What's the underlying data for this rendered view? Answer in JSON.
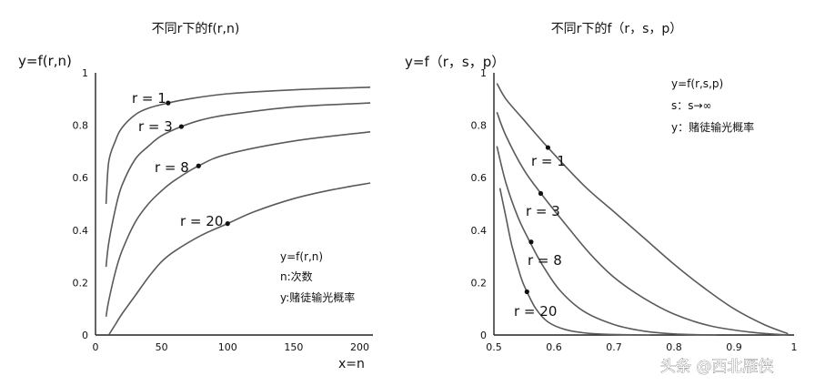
{
  "chart_data": [
    {
      "type": "line",
      "title": "不同r下的f(r,n)",
      "ylabel": "y=f(r,n)",
      "xlabel": "x=n",
      "xlim": [
        0,
        210
      ],
      "ylim": [
        0,
        1
      ],
      "x_ticks": [
        "0",
        "50",
        "100",
        "150",
        "200"
      ],
      "y_ticks": [
        "0",
        "0.2",
        "0.4",
        "0.6",
        "0.8",
        "1"
      ],
      "series": [
        {
          "name": "r=1",
          "x": [
            8,
            10,
            15,
            20,
            30,
            40,
            55,
            70,
            100,
            150,
            208
          ],
          "y": [
            0.5,
            0.66,
            0.74,
            0.79,
            0.84,
            0.865,
            0.885,
            0.9,
            0.92,
            0.935,
            0.945
          ]
        },
        {
          "name": "r=3",
          "x": [
            8,
            10,
            15,
            20,
            30,
            40,
            50,
            65,
            80,
            100,
            150,
            208
          ],
          "y": [
            0.26,
            0.35,
            0.48,
            0.57,
            0.67,
            0.72,
            0.76,
            0.795,
            0.82,
            0.84,
            0.87,
            0.885
          ]
        },
        {
          "name": "r=8",
          "x": [
            8,
            10,
            15,
            20,
            30,
            40,
            50,
            60,
            78,
            100,
            150,
            208
          ],
          "y": [
            0.07,
            0.13,
            0.24,
            0.32,
            0.43,
            0.5,
            0.55,
            0.59,
            0.645,
            0.69,
            0.74,
            0.775
          ]
        },
        {
          "name": "r=20",
          "x": [
            10,
            15,
            20,
            30,
            40,
            50,
            60,
            80,
            100,
            120,
            150,
            180,
            208
          ],
          "y": [
            0.0,
            0.04,
            0.08,
            0.15,
            0.22,
            0.28,
            0.32,
            0.38,
            0.425,
            0.47,
            0.52,
            0.555,
            0.58
          ]
        }
      ],
      "markers": [
        {
          "x": 55,
          "y": 0.885
        },
        {
          "x": 65,
          "y": 0.795
        },
        {
          "x": 78,
          "y": 0.645
        },
        {
          "x": 100,
          "y": 0.425
        }
      ],
      "curve_labels": [
        "r = 1",
        "r = 3",
        "r = 8",
        "r = 20"
      ],
      "notes": [
        "y=f(r,n)",
        "n:次数",
        "y:赌徒输光概率"
      ]
    },
    {
      "type": "line",
      "title": "不同r下的f（r，s，p）",
      "ylabel": "y=f（r，s，p）",
      "xlabel": "",
      "xlim": [
        0.5,
        1.0
      ],
      "ylim": [
        0,
        1
      ],
      "x_ticks": [
        "0.5",
        "0.6",
        "0.7",
        "0.8",
        "0.9",
        "1"
      ],
      "y_ticks": [
        "0",
        "0.2",
        "0.4",
        "0.6",
        "0.8",
        "1"
      ],
      "series": [
        {
          "name": "r=1",
          "x": [
            0.505,
            0.52,
            0.55,
            0.59,
            0.65,
            0.7,
            0.75,
            0.8,
            0.85,
            0.9,
            0.95,
            0.99
          ],
          "y": [
            0.96,
            0.9,
            0.82,
            0.715,
            0.57,
            0.47,
            0.37,
            0.27,
            0.18,
            0.1,
            0.04,
            0.005
          ]
        },
        {
          "name": "r=3",
          "x": [
            0.505,
            0.52,
            0.55,
            0.58,
            0.62,
            0.66,
            0.7,
            0.75,
            0.8,
            0.86,
            0.93,
            0.99
          ],
          "y": [
            0.85,
            0.76,
            0.63,
            0.535,
            0.42,
            0.31,
            0.22,
            0.14,
            0.08,
            0.035,
            0.01,
            0.0
          ]
        },
        {
          "name": "r=8",
          "x": [
            0.505,
            0.52,
            0.54,
            0.56,
            0.58,
            0.61,
            0.65,
            0.7,
            0.75,
            0.8,
            0.87
          ],
          "y": [
            0.72,
            0.58,
            0.45,
            0.355,
            0.27,
            0.17,
            0.09,
            0.04,
            0.015,
            0.004,
            0.0
          ]
        },
        {
          "name": "r=20",
          "x": [
            0.51,
            0.52,
            0.53,
            0.545,
            0.555,
            0.57,
            0.59,
            0.62,
            0.66,
            0.7,
            0.76
          ],
          "y": [
            0.56,
            0.45,
            0.34,
            0.22,
            0.165,
            0.1,
            0.05,
            0.02,
            0.006,
            0.002,
            0.0
          ]
        }
      ],
      "markers": [
        {
          "x": 0.59,
          "y": 0.715
        },
        {
          "x": 0.578,
          "y": 0.54
        },
        {
          "x": 0.562,
          "y": 0.355
        },
        {
          "x": 0.555,
          "y": 0.165
        }
      ],
      "curve_labels": [
        "r = 1",
        "r = 3",
        "r = 8",
        "r = 20"
      ],
      "notes": [
        "y=f(r,s,p)",
        "s：s→∞",
        "y：赌徒输光概率"
      ]
    }
  ],
  "watermark": "头条 @西北雁侠"
}
